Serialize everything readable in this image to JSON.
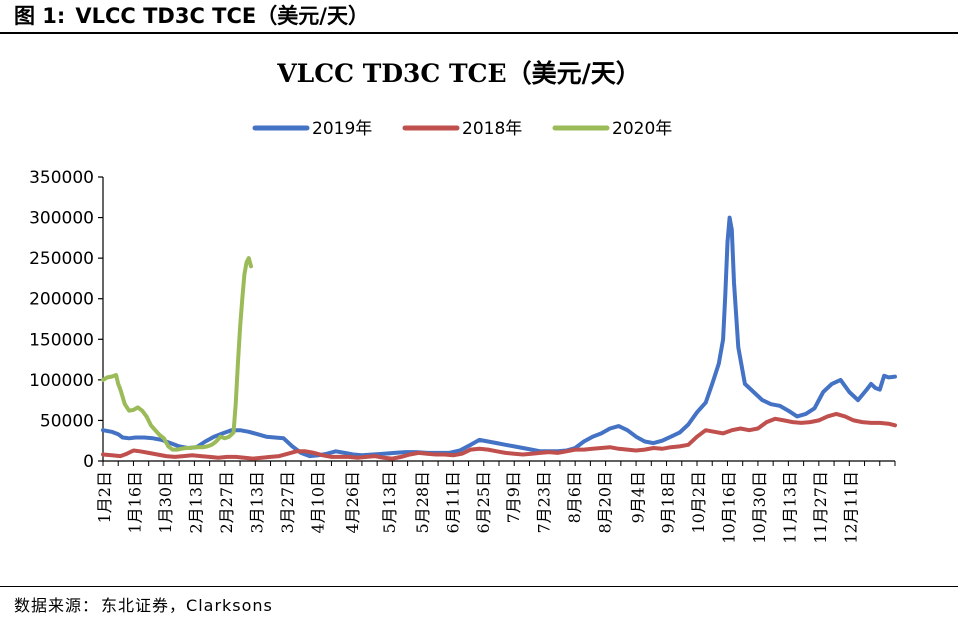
{
  "figure": {
    "label": "图 1:",
    "title": "VLCC TD3C TCE（美元/天）"
  },
  "source": {
    "prefix": "数据来源：",
    "text": "东北证券，Clarksons"
  },
  "chart_data": {
    "type": "line",
    "title": "VLCC TD3C TCE（美元/天）",
    "xlabel": "",
    "ylabel": "",
    "ylim": [
      0,
      350000
    ],
    "yticks": [
      0,
      50000,
      100000,
      150000,
      200000,
      250000,
      300000,
      350000
    ],
    "ytick_labels": [
      "0",
      "50000",
      "100000",
      "150000",
      "200000",
      "250000",
      "300000",
      "350000"
    ],
    "x_range_days": [
      1,
      365
    ],
    "x_tick_labels": [
      "1月2日",
      "1月16日",
      "1月30日",
      "2月13日",
      "2月27日",
      "3月13日",
      "3月27日",
      "4月10日",
      "4月26日",
      "5月13日",
      "5月28日",
      "6月11日",
      "6月25日",
      "7月9日",
      "7月23日",
      "8月6日",
      "8月20日",
      "9月4日",
      "9月18日",
      "10月2日",
      "10月16日",
      "10月30日",
      "11月13日",
      "11月27日",
      "12月11日"
    ],
    "x_tick_days": [
      2,
      16,
      30,
      44,
      58,
      72,
      86,
      100,
      116,
      133,
      148,
      162,
      176,
      190,
      204,
      218,
      232,
      247,
      261,
      275,
      289,
      303,
      317,
      331,
      345
    ],
    "legend": "top-center",
    "grid": false,
    "series": [
      {
        "name": "2019年",
        "color": "#4472C4",
        "points": [
          [
            1,
            38000
          ],
          [
            5,
            36000
          ],
          [
            8,
            33000
          ],
          [
            10,
            29000
          ],
          [
            13,
            28000
          ],
          [
            16,
            29000
          ],
          [
            20,
            29000
          ],
          [
            24,
            28000
          ],
          [
            28,
            26000
          ],
          [
            32,
            22000
          ],
          [
            36,
            18000
          ],
          [
            40,
            16000
          ],
          [
            44,
            17000
          ],
          [
            48,
            24000
          ],
          [
            52,
            30000
          ],
          [
            56,
            34000
          ],
          [
            60,
            38000
          ],
          [
            64,
            38000
          ],
          [
            68,
            36000
          ],
          [
            72,
            33000
          ],
          [
            76,
            30000
          ],
          [
            80,
            29000
          ],
          [
            84,
            28000
          ],
          [
            88,
            18000
          ],
          [
            92,
            10000
          ],
          [
            96,
            6000
          ],
          [
            100,
            7000
          ],
          [
            104,
            9000
          ],
          [
            108,
            12000
          ],
          [
            112,
            10000
          ],
          [
            116,
            8000
          ],
          [
            120,
            7000
          ],
          [
            125,
            8000
          ],
          [
            130,
            9000
          ],
          [
            135,
            10000
          ],
          [
            140,
            11000
          ],
          [
            145,
            11000
          ],
          [
            150,
            10000
          ],
          [
            155,
            10000
          ],
          [
            160,
            10000
          ],
          [
            165,
            13000
          ],
          [
            170,
            20000
          ],
          [
            174,
            26000
          ],
          [
            178,
            24000
          ],
          [
            182,
            22000
          ],
          [
            186,
            20000
          ],
          [
            190,
            18000
          ],
          [
            194,
            16000
          ],
          [
            198,
            14000
          ],
          [
            202,
            12000
          ],
          [
            206,
            12000
          ],
          [
            210,
            12000
          ],
          [
            214,
            13000
          ],
          [
            218,
            16000
          ],
          [
            222,
            24000
          ],
          [
            226,
            30000
          ],
          [
            230,
            34000
          ],
          [
            234,
            40000
          ],
          [
            238,
            43000
          ],
          [
            242,
            38000
          ],
          [
            246,
            30000
          ],
          [
            250,
            24000
          ],
          [
            254,
            22000
          ],
          [
            258,
            25000
          ],
          [
            262,
            30000
          ],
          [
            266,
            35000
          ],
          [
            270,
            45000
          ],
          [
            274,
            60000
          ],
          [
            278,
            72000
          ],
          [
            281,
            95000
          ],
          [
            284,
            120000
          ],
          [
            286,
            150000
          ],
          [
            287,
            205000
          ],
          [
            288,
            270000
          ],
          [
            289,
            300000
          ],
          [
            290,
            285000
          ],
          [
            291,
            220000
          ],
          [
            293,
            140000
          ],
          [
            296,
            95000
          ],
          [
            300,
            85000
          ],
          [
            304,
            75000
          ],
          [
            308,
            70000
          ],
          [
            312,
            68000
          ],
          [
            316,
            62000
          ],
          [
            320,
            55000
          ],
          [
            324,
            58000
          ],
          [
            328,
            65000
          ],
          [
            332,
            85000
          ],
          [
            336,
            95000
          ],
          [
            340,
            100000
          ],
          [
            344,
            85000
          ],
          [
            348,
            75000
          ],
          [
            352,
            88000
          ],
          [
            354,
            95000
          ],
          [
            356,
            90000
          ],
          [
            358,
            88000
          ],
          [
            360,
            105000
          ],
          [
            362,
            103000
          ],
          [
            365,
            104000
          ]
        ]
      },
      {
        "name": "2018年",
        "color": "#C0504D",
        "points": [
          [
            1,
            8000
          ],
          [
            5,
            7000
          ],
          [
            9,
            6000
          ],
          [
            12,
            9000
          ],
          [
            15,
            13000
          ],
          [
            18,
            12000
          ],
          [
            22,
            10000
          ],
          [
            26,
            8000
          ],
          [
            30,
            6000
          ],
          [
            34,
            5000
          ],
          [
            38,
            6000
          ],
          [
            42,
            7000
          ],
          [
            46,
            6000
          ],
          [
            50,
            5000
          ],
          [
            54,
            4000
          ],
          [
            58,
            5000
          ],
          [
            62,
            5000
          ],
          [
            66,
            4000
          ],
          [
            70,
            3000
          ],
          [
            74,
            4000
          ],
          [
            78,
            5000
          ],
          [
            82,
            6000
          ],
          [
            86,
            9000
          ],
          [
            90,
            12000
          ],
          [
            94,
            12000
          ],
          [
            98,
            10000
          ],
          [
            102,
            7000
          ],
          [
            106,
            5000
          ],
          [
            110,
            5000
          ],
          [
            114,
            5000
          ],
          [
            118,
            4000
          ],
          [
            122,
            5000
          ],
          [
            126,
            6000
          ],
          [
            130,
            4000
          ],
          [
            134,
            3000
          ],
          [
            138,
            5000
          ],
          [
            142,
            8000
          ],
          [
            146,
            10000
          ],
          [
            150,
            9000
          ],
          [
            154,
            8000
          ],
          [
            158,
            8000
          ],
          [
            162,
            7000
          ],
          [
            166,
            9000
          ],
          [
            170,
            14000
          ],
          [
            174,
            15000
          ],
          [
            178,
            14000
          ],
          [
            182,
            12000
          ],
          [
            186,
            10000
          ],
          [
            190,
            9000
          ],
          [
            194,
            8000
          ],
          [
            198,
            9000
          ],
          [
            202,
            10000
          ],
          [
            206,
            11000
          ],
          [
            210,
            10000
          ],
          [
            214,
            12000
          ],
          [
            218,
            14000
          ],
          [
            222,
            14000
          ],
          [
            226,
            15000
          ],
          [
            230,
            16000
          ],
          [
            234,
            17000
          ],
          [
            238,
            15000
          ],
          [
            242,
            14000
          ],
          [
            246,
            13000
          ],
          [
            250,
            14000
          ],
          [
            254,
            16000
          ],
          [
            258,
            15000
          ],
          [
            262,
            17000
          ],
          [
            266,
            18000
          ],
          [
            270,
            20000
          ],
          [
            274,
            30000
          ],
          [
            278,
            38000
          ],
          [
            282,
            36000
          ],
          [
            286,
            34000
          ],
          [
            290,
            38000
          ],
          [
            294,
            40000
          ],
          [
            298,
            38000
          ],
          [
            302,
            40000
          ],
          [
            306,
            48000
          ],
          [
            310,
            52000
          ],
          [
            314,
            50000
          ],
          [
            318,
            48000
          ],
          [
            322,
            47000
          ],
          [
            326,
            48000
          ],
          [
            330,
            50000
          ],
          [
            334,
            55000
          ],
          [
            338,
            58000
          ],
          [
            342,
            55000
          ],
          [
            346,
            50000
          ],
          [
            350,
            48000
          ],
          [
            354,
            47000
          ],
          [
            358,
            47000
          ],
          [
            362,
            46000
          ],
          [
            365,
            44000
          ]
        ]
      },
      {
        "name": "2020年",
        "color": "#9BBB59",
        "points": [
          [
            1,
            100000
          ],
          [
            3,
            103000
          ],
          [
            5,
            104000
          ],
          [
            7,
            106000
          ],
          [
            8,
            95000
          ],
          [
            9,
            88000
          ],
          [
            11,
            70000
          ],
          [
            13,
            62000
          ],
          [
            15,
            63000
          ],
          [
            17,
            66000
          ],
          [
            19,
            62000
          ],
          [
            21,
            55000
          ],
          [
            23,
            44000
          ],
          [
            25,
            38000
          ],
          [
            27,
            32000
          ],
          [
            29,
            28000
          ],
          [
            31,
            18000
          ],
          [
            33,
            14000
          ],
          [
            35,
            14000
          ],
          [
            37,
            15000
          ],
          [
            39,
            16000
          ],
          [
            41,
            16000
          ],
          [
            43,
            17000
          ],
          [
            45,
            17000
          ],
          [
            47,
            17000
          ],
          [
            49,
            18000
          ],
          [
            51,
            20000
          ],
          [
            53,
            24000
          ],
          [
            55,
            30000
          ],
          [
            57,
            28000
          ],
          [
            59,
            30000
          ],
          [
            61,
            35000
          ],
          [
            62,
            70000
          ],
          [
            63,
            120000
          ],
          [
            64,
            165000
          ],
          [
            65,
            200000
          ],
          [
            66,
            230000
          ],
          [
            67,
            245000
          ],
          [
            68,
            250000
          ],
          [
            69,
            240000
          ]
        ]
      }
    ]
  }
}
